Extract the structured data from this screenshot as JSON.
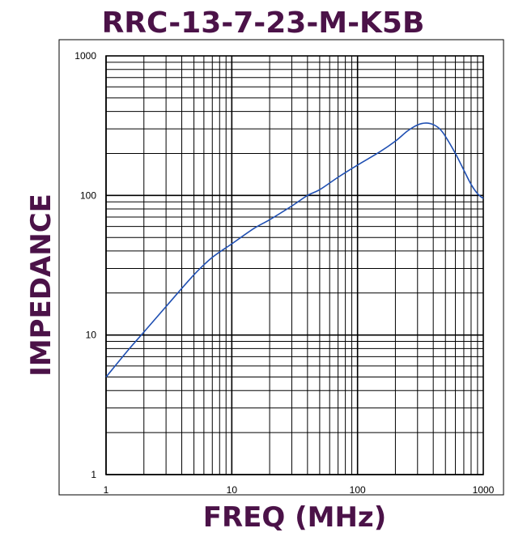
{
  "chart_data": {
    "type": "line",
    "title": "RRC-13-7-23-M-K5B",
    "xlabel": "FREQ (MHz)",
    "ylabel": "IMPEDANCE",
    "x_scale": "log",
    "y_scale": "log",
    "xlim": [
      1,
      1000
    ],
    "ylim": [
      1,
      1000
    ],
    "grid": true,
    "x_ticks": [
      "1",
      "10",
      "100",
      "1000"
    ],
    "y_ticks": [
      "1",
      "10",
      "100",
      "1000"
    ],
    "series": [
      {
        "x": [
          1,
          1.5,
          2,
          3,
          5,
          7,
          10,
          15,
          20,
          30,
          40,
          50,
          70,
          100,
          150,
          200,
          250,
          300,
          350,
          400,
          450,
          500,
          600,
          700,
          800,
          900,
          1000
        ],
        "y": [
          5,
          7.8,
          10.5,
          16,
          27,
          36,
          45,
          58,
          67,
          84,
          100,
          110,
          135,
          165,
          205,
          245,
          290,
          320,
          330,
          322,
          300,
          265,
          200,
          152,
          120,
          103,
          95
        ]
      }
    ],
    "colors": {
      "title": "#4b1248",
      "line": "#1f4fb2",
      "grid": "#000000"
    }
  }
}
